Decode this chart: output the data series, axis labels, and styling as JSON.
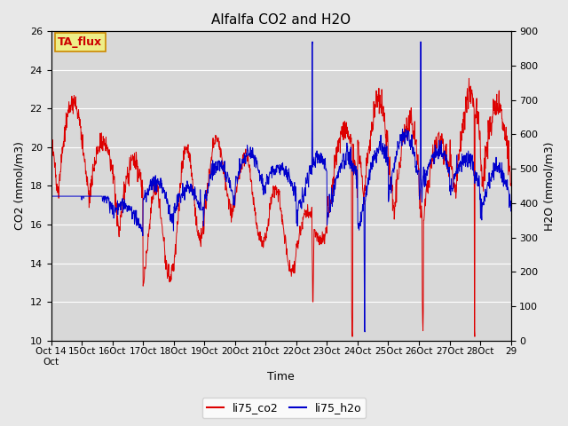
{
  "title": "Alfalfa CO2 and H2O",
  "xlabel": "Time",
  "ylabel_left": "CO2 (mmol/m3)",
  "ylabel_right": "H2O (mmol/m3)",
  "ylim_left": [
    10,
    26
  ],
  "ylim_right": [
    0,
    900
  ],
  "yticks_left": [
    10,
    12,
    14,
    16,
    18,
    20,
    22,
    24,
    26
  ],
  "yticks_right": [
    0,
    100,
    200,
    300,
    400,
    500,
    600,
    700,
    800,
    900
  ],
  "color_co2": "#dd0000",
  "color_h2o": "#0000cc",
  "legend_co2": "li75_co2",
  "legend_h2o": "li75_h2o",
  "annotation_text": "TA_flux",
  "annotation_box_facecolor": "#eeee88",
  "annotation_box_edgecolor": "#cc8800",
  "fig_facecolor": "#e8e8e8",
  "ax_facecolor": "#d8d8d8",
  "grid_color": "#ffffff",
  "title_fontsize": 11,
  "axis_label_fontsize": 9,
  "tick_fontsize": 8,
  "legend_fontsize": 9,
  "n_days": 15,
  "pts_per_day": 96
}
